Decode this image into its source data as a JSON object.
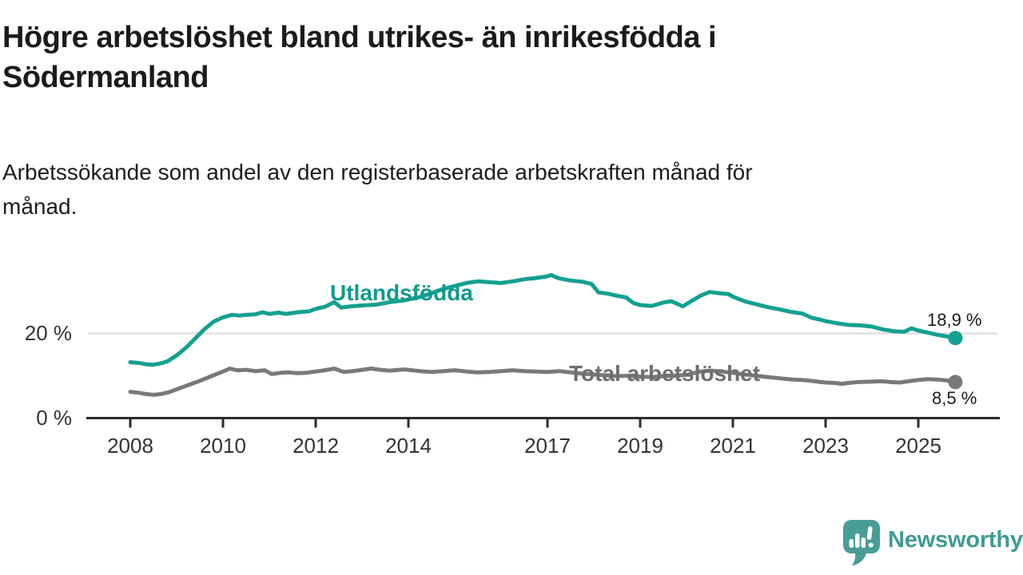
{
  "header": {
    "title_lines": [
      "Högre arbetslöshet bland utrikes- än inrikesfödda i",
      "Södermanland"
    ],
    "subtitle_lines": [
      "Arbetssökande som andel av den registerbaserade arbetskraften månad för",
      "månad."
    ]
  },
  "branding": {
    "name": "Newsworthy",
    "color": "#3E9B94",
    "logo": "speech-bubble-bar-chart"
  },
  "style": {
    "background": "#FFFFFF",
    "grid_color": "#DADADA",
    "axis_color": "#2B2B2B",
    "tick_label_color": "#333333",
    "text_color": "#1B1B1B",
    "value_label_color": "#1A1A1A"
  },
  "chart_data": {
    "type": "line",
    "title": "Högre arbetslöshet bland utrikes- än inrikesfödda i Södermanland",
    "subtitle": "Arbetssökande som andel av den registerbaserade arbetskraften månad för månad.",
    "xlabel": "",
    "ylabel": "",
    "x_unit": "year (monthly data)",
    "xlim": [
      2007.1,
      2026.8
    ],
    "ylim": [
      0,
      37
    ],
    "grid": "horizontal-at-20-only",
    "legend_position": "inline-labels-on-lines",
    "y_ticks": [
      {
        "value": 0,
        "label": "0 %"
      },
      {
        "value": 20,
        "label": "20 %"
      }
    ],
    "x_ticks": [
      {
        "year": 2008,
        "label": "2008"
      },
      {
        "year": 2010,
        "label": "2010"
      },
      {
        "year": 2012,
        "label": "2012"
      },
      {
        "year": 2014,
        "label": "2014"
      },
      {
        "year": 2017,
        "label": "2017"
      },
      {
        "year": 2019,
        "label": "2019"
      },
      {
        "year": 2021,
        "label": "2021"
      },
      {
        "year": 2023,
        "label": "2023"
      },
      {
        "year": 2025,
        "label": "2025"
      }
    ],
    "series": [
      {
        "name": "Utlandsfödda",
        "color": "#14A090",
        "label_color": "#119A8D",
        "end_label": "18,9 %",
        "end_value": 18.9,
        "points": [
          [
            2008.0,
            13.2
          ],
          [
            2008.2,
            13.0
          ],
          [
            2008.35,
            12.7
          ],
          [
            2008.5,
            12.6
          ],
          [
            2008.65,
            12.9
          ],
          [
            2008.8,
            13.4
          ],
          [
            2009.0,
            14.8
          ],
          [
            2009.2,
            16.6
          ],
          [
            2009.4,
            18.8
          ],
          [
            2009.6,
            21.0
          ],
          [
            2009.8,
            22.8
          ],
          [
            2010.0,
            23.8
          ],
          [
            2010.2,
            24.4
          ],
          [
            2010.35,
            24.2
          ],
          [
            2010.5,
            24.4
          ],
          [
            2010.7,
            24.5
          ],
          [
            2010.85,
            25.0
          ],
          [
            2011.0,
            24.6
          ],
          [
            2011.2,
            24.9
          ],
          [
            2011.35,
            24.6
          ],
          [
            2011.55,
            24.9
          ],
          [
            2011.7,
            25.1
          ],
          [
            2011.85,
            25.2
          ],
          [
            2012.0,
            25.8
          ],
          [
            2012.2,
            26.3
          ],
          [
            2012.4,
            27.4
          ],
          [
            2012.55,
            26.1
          ],
          [
            2012.75,
            26.4
          ],
          [
            2013.0,
            26.6
          ],
          [
            2013.3,
            26.8
          ],
          [
            2013.6,
            27.4
          ],
          [
            2013.9,
            27.8
          ],
          [
            2014.25,
            28.6
          ],
          [
            2014.5,
            29.5
          ],
          [
            2014.75,
            30.5
          ],
          [
            2015.0,
            31.2
          ],
          [
            2015.25,
            31.9
          ],
          [
            2015.5,
            32.3
          ],
          [
            2015.75,
            32.1
          ],
          [
            2016.0,
            31.9
          ],
          [
            2016.25,
            32.3
          ],
          [
            2016.5,
            32.8
          ],
          [
            2016.75,
            33.1
          ],
          [
            2017.0,
            33.5
          ],
          [
            2017.08,
            33.8
          ],
          [
            2017.25,
            33.0
          ],
          [
            2017.5,
            32.5
          ],
          [
            2017.75,
            32.2
          ],
          [
            2017.95,
            31.7
          ],
          [
            2018.1,
            29.7
          ],
          [
            2018.3,
            29.4
          ],
          [
            2018.5,
            28.9
          ],
          [
            2018.7,
            28.5
          ],
          [
            2018.85,
            27.2
          ],
          [
            2019.0,
            26.7
          ],
          [
            2019.25,
            26.5
          ],
          [
            2019.5,
            27.3
          ],
          [
            2019.67,
            27.6
          ],
          [
            2019.92,
            26.4
          ],
          [
            2020.1,
            27.6
          ],
          [
            2020.3,
            28.9
          ],
          [
            2020.5,
            29.8
          ],
          [
            2020.7,
            29.5
          ],
          [
            2020.9,
            29.3
          ],
          [
            2021.0,
            28.7
          ],
          [
            2021.25,
            27.6
          ],
          [
            2021.5,
            26.9
          ],
          [
            2021.75,
            26.2
          ],
          [
            2022.0,
            25.7
          ],
          [
            2022.25,
            25.1
          ],
          [
            2022.5,
            24.7
          ],
          [
            2022.7,
            23.7
          ],
          [
            2022.9,
            23.2
          ],
          [
            2023.0,
            22.9
          ],
          [
            2023.25,
            22.4
          ],
          [
            2023.5,
            22.0
          ],
          [
            2023.75,
            21.9
          ],
          [
            2024.0,
            21.6
          ],
          [
            2024.25,
            20.9
          ],
          [
            2024.5,
            20.5
          ],
          [
            2024.7,
            20.4
          ],
          [
            2024.85,
            21.2
          ],
          [
            2025.0,
            20.7
          ],
          [
            2025.2,
            20.2
          ],
          [
            2025.4,
            19.7
          ],
          [
            2025.6,
            19.3
          ],
          [
            2025.8,
            18.9
          ]
        ]
      },
      {
        "name": "Total arbetslöshet",
        "color": "#79797B",
        "label_color": "#6E6E71",
        "end_label": "8,5 %",
        "end_value": 8.5,
        "points": [
          [
            2008.0,
            6.2
          ],
          [
            2008.17,
            6.0
          ],
          [
            2008.33,
            5.7
          ],
          [
            2008.5,
            5.5
          ],
          [
            2008.67,
            5.7
          ],
          [
            2008.83,
            6.1
          ],
          [
            2009.0,
            6.8
          ],
          [
            2009.25,
            7.8
          ],
          [
            2009.5,
            8.8
          ],
          [
            2009.75,
            9.9
          ],
          [
            2010.0,
            11.0
          ],
          [
            2010.15,
            11.7
          ],
          [
            2010.3,
            11.3
          ],
          [
            2010.5,
            11.4
          ],
          [
            2010.7,
            11.1
          ],
          [
            2010.9,
            11.3
          ],
          [
            2011.05,
            10.4
          ],
          [
            2011.25,
            10.7
          ],
          [
            2011.4,
            10.8
          ],
          [
            2011.6,
            10.6
          ],
          [
            2011.8,
            10.7
          ],
          [
            2012.0,
            11.0
          ],
          [
            2012.2,
            11.3
          ],
          [
            2012.4,
            11.7
          ],
          [
            2012.6,
            10.9
          ],
          [
            2012.8,
            11.1
          ],
          [
            2013.0,
            11.4
          ],
          [
            2013.2,
            11.7
          ],
          [
            2013.4,
            11.4
          ],
          [
            2013.6,
            11.2
          ],
          [
            2013.9,
            11.5
          ],
          [
            2014.0,
            11.4
          ],
          [
            2014.25,
            11.1
          ],
          [
            2014.5,
            10.9
          ],
          [
            2014.75,
            11.1
          ],
          [
            2015.0,
            11.3
          ],
          [
            2015.25,
            11.0
          ],
          [
            2015.5,
            10.8
          ],
          [
            2015.75,
            10.9
          ],
          [
            2016.0,
            11.1
          ],
          [
            2016.25,
            11.3
          ],
          [
            2016.5,
            11.1
          ],
          [
            2016.75,
            11.0
          ],
          [
            2017.0,
            10.9
          ],
          [
            2017.25,
            11.1
          ],
          [
            2017.5,
            10.8
          ],
          [
            2017.75,
            10.5
          ],
          [
            2018.0,
            10.3
          ],
          [
            2018.25,
            10.1
          ],
          [
            2018.5,
            9.9
          ],
          [
            2018.75,
            10.0
          ],
          [
            2019.0,
            9.8
          ],
          [
            2019.25,
            9.7
          ],
          [
            2019.5,
            9.9
          ],
          [
            2019.75,
            10.0
          ],
          [
            2020.0,
            10.2
          ],
          [
            2020.3,
            11.0
          ],
          [
            2020.5,
            11.2
          ],
          [
            2020.75,
            11.0
          ],
          [
            2021.0,
            10.7
          ],
          [
            2021.25,
            10.3
          ],
          [
            2021.5,
            10.0
          ],
          [
            2021.75,
            9.7
          ],
          [
            2022.0,
            9.4
          ],
          [
            2022.3,
            9.1
          ],
          [
            2022.6,
            8.9
          ],
          [
            2022.9,
            8.5
          ],
          [
            2023.0,
            8.4
          ],
          [
            2023.2,
            8.3
          ],
          [
            2023.35,
            8.1
          ],
          [
            2023.5,
            8.3
          ],
          [
            2023.7,
            8.5
          ],
          [
            2024.0,
            8.6
          ],
          [
            2024.2,
            8.7
          ],
          [
            2024.4,
            8.5
          ],
          [
            2024.6,
            8.4
          ],
          [
            2024.85,
            8.8
          ],
          [
            2025.0,
            9.0
          ],
          [
            2025.2,
            9.2
          ],
          [
            2025.4,
            9.1
          ],
          [
            2025.6,
            8.9
          ],
          [
            2025.8,
            8.5
          ]
        ]
      }
    ]
  }
}
